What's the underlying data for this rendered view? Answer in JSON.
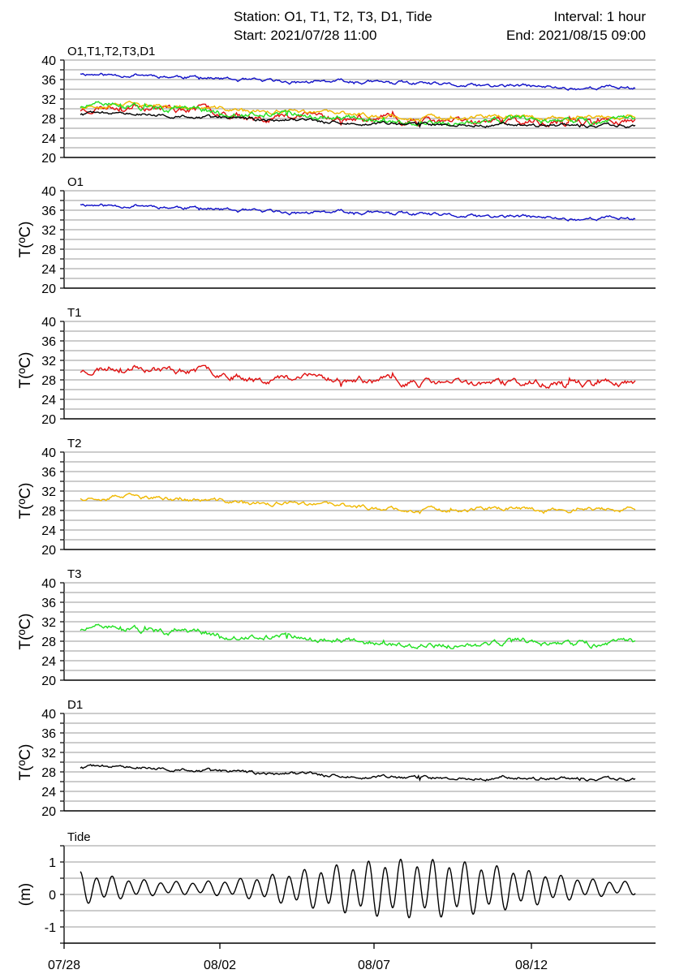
{
  "header": {
    "station": "Station: O1, T1, T2, T3, D1, Tide",
    "interval": "Interval: 1 hour",
    "start": "Start: 2021/07/28 11:00",
    "end": "End: 2021/08/15 09:00"
  },
  "colors": {
    "O1": "#1010c8",
    "T1": "#e01010",
    "T2": "#f0b800",
    "T3": "#20e020",
    "D1": "#000000",
    "Tide": "#000000",
    "grid": "#9a9a9a"
  },
  "chart_data": [
    {
      "type": "line",
      "title": "O1,T1,T2,T3,D1",
      "ylabel": "",
      "ylim": [
        20,
        40
      ],
      "yticks": [
        "20",
        "24",
        "28",
        "32",
        "36",
        "40"
      ],
      "x_start": "2021/07/28 11:00",
      "x_end": "2021/08/15 09:00",
      "series": [
        {
          "name": "O1",
          "x": [
            0,
            1,
            2,
            3,
            4,
            5,
            6,
            7,
            8,
            9,
            10,
            11,
            12,
            13,
            14,
            15,
            16,
            17,
            18,
            19
          ],
          "y": [
            37.3,
            36.9,
            37.1,
            36.7,
            36.5,
            36.0,
            35.6,
            35.5,
            35.5,
            35.6,
            35.4,
            35.3,
            35.0,
            34.7,
            34.6,
            34.7,
            34.4,
            34.2,
            34.5,
            34.3
          ]
        },
        {
          "name": "T1",
          "x": [
            0,
            1,
            2,
            3,
            4,
            5,
            6,
            7,
            8,
            9,
            10,
            11,
            12,
            13,
            14,
            15,
            16,
            17,
            18,
            19
          ],
          "y": [
            29.8,
            30.6,
            31.0,
            30.1,
            29.9,
            29.5,
            28.3,
            28.4,
            28.6,
            28.1,
            27.9,
            27.6,
            27.3,
            27.2,
            27.4,
            27.3,
            27.1,
            27.3,
            27.5,
            27.4
          ]
        },
        {
          "name": "T2",
          "x": [
            0,
            1,
            2,
            3,
            4,
            5,
            6,
            7,
            8,
            9,
            10,
            11,
            12,
            13,
            14,
            15,
            16,
            17,
            18,
            19
          ],
          "y": [
            30.6,
            31.0,
            30.6,
            30.4,
            30.1,
            29.9,
            29.4,
            29.5,
            29.1,
            28.9,
            28.6,
            28.3,
            28.1,
            28.2,
            28.4,
            28.3,
            28.1,
            28.2,
            28.3,
            28.1
          ]
        },
        {
          "name": "T3",
          "x": [
            0,
            1,
            2,
            3,
            4,
            5,
            6,
            7,
            8,
            9,
            10,
            11,
            12,
            13,
            14,
            15,
            16,
            17,
            18,
            19
          ],
          "y": [
            30.4,
            30.9,
            30.2,
            30.0,
            29.8,
            29.2,
            28.7,
            29.1,
            28.7,
            28.1,
            27.8,
            27.3,
            27.1,
            27.3,
            27.4,
            27.9,
            27.3,
            27.4,
            27.2,
            27.5
          ]
        },
        {
          "name": "D1",
          "x": [
            0,
            1,
            2,
            3,
            4,
            5,
            6,
            7,
            8,
            9,
            10,
            11,
            12,
            13,
            14,
            15,
            16,
            17,
            18,
            19
          ],
          "y": [
            28.9,
            29.0,
            28.9,
            28.7,
            28.4,
            28.1,
            27.8,
            27.7,
            27.5,
            27.1,
            26.9,
            26.8,
            26.7,
            26.7,
            26.8,
            26.9,
            26.5,
            26.5,
            26.4,
            26.5
          ]
        }
      ]
    },
    {
      "type": "line",
      "title": "O1",
      "ylabel": "T(ºC)",
      "ylim": [
        20,
        40
      ],
      "yticks": [
        "20",
        "24",
        "28",
        "32",
        "36",
        "40"
      ],
      "series": [
        {
          "name": "O1",
          "x": [
            0,
            1,
            2,
            3,
            4,
            5,
            6,
            7,
            8,
            9,
            10,
            11,
            12,
            13,
            14,
            15,
            16,
            17,
            18,
            19
          ],
          "y": [
            37.3,
            36.9,
            37.1,
            36.7,
            36.5,
            36.0,
            35.6,
            35.5,
            35.5,
            35.6,
            35.4,
            35.3,
            35.0,
            34.7,
            34.6,
            34.7,
            34.4,
            34.2,
            34.5,
            34.3
          ]
        }
      ]
    },
    {
      "type": "line",
      "title": "T1",
      "ylabel": "T(ºC)",
      "ylim": [
        20,
        40
      ],
      "yticks": [
        "20",
        "24",
        "28",
        "32",
        "36",
        "40"
      ],
      "series": [
        {
          "name": "T1",
          "x": [
            0,
            1,
            2,
            3,
            4,
            5,
            6,
            7,
            8,
            9,
            10,
            11,
            12,
            13,
            14,
            15,
            16,
            17,
            18,
            19
          ],
          "y": [
            29.8,
            30.6,
            31.0,
            30.1,
            29.9,
            29.5,
            28.3,
            28.4,
            28.6,
            28.1,
            27.9,
            27.6,
            27.3,
            27.2,
            27.4,
            27.3,
            27.1,
            27.3,
            27.5,
            27.4
          ]
        }
      ]
    },
    {
      "type": "line",
      "title": "T2",
      "ylabel": "T(ºC)",
      "ylim": [
        20,
        40
      ],
      "yticks": [
        "20",
        "24",
        "28",
        "32",
        "36",
        "40"
      ],
      "series": [
        {
          "name": "T2",
          "x": [
            0,
            1,
            2,
            3,
            4,
            5,
            6,
            7,
            8,
            9,
            10,
            11,
            12,
            13,
            14,
            15,
            16,
            17,
            18,
            19
          ],
          "y": [
            30.6,
            31.0,
            30.6,
            30.4,
            30.1,
            29.9,
            29.4,
            29.5,
            29.1,
            28.9,
            28.6,
            28.3,
            28.1,
            28.2,
            28.4,
            28.3,
            28.1,
            28.2,
            28.3,
            28.1
          ]
        }
      ]
    },
    {
      "type": "line",
      "title": "T3",
      "ylabel": "T(ºC)",
      "ylim": [
        20,
        40
      ],
      "yticks": [
        "20",
        "24",
        "28",
        "32",
        "36",
        "40"
      ],
      "series": [
        {
          "name": "T3",
          "x": [
            0,
            1,
            2,
            3,
            4,
            5,
            6,
            7,
            8,
            9,
            10,
            11,
            12,
            13,
            14,
            15,
            16,
            17,
            18,
            19
          ],
          "y": [
            30.4,
            30.9,
            30.2,
            30.0,
            29.8,
            29.2,
            28.7,
            29.1,
            28.7,
            28.1,
            27.8,
            27.3,
            27.1,
            27.3,
            27.4,
            27.9,
            27.3,
            27.4,
            27.2,
            27.5
          ]
        }
      ]
    },
    {
      "type": "line",
      "title": "D1",
      "ylabel": "T(ºC)",
      "ylim": [
        20,
        40
      ],
      "yticks": [
        "20",
        "24",
        "28",
        "32",
        "36",
        "40"
      ],
      "series": [
        {
          "name": "D1",
          "x": [
            0,
            1,
            2,
            3,
            4,
            5,
            6,
            7,
            8,
            9,
            10,
            11,
            12,
            13,
            14,
            15,
            16,
            17,
            18,
            19
          ],
          "y": [
            28.9,
            29.0,
            28.9,
            28.7,
            28.4,
            28.1,
            27.8,
            27.7,
            27.5,
            27.1,
            26.9,
            26.8,
            26.7,
            26.7,
            26.8,
            26.9,
            26.5,
            26.5,
            26.4,
            26.5
          ]
        }
      ]
    },
    {
      "type": "line",
      "title": "Tide",
      "ylabel": "(m)",
      "ylim": [
        -1.5,
        1.5
      ],
      "yticks": [
        "-1",
        "0",
        "1"
      ],
      "xticks": [
        "07/28",
        "08/02",
        "08/07",
        "08/12"
      ],
      "series": [
        {
          "name": "Tide",
          "mean": 0.2,
          "semidiurnal_period_h": 12.42,
          "approx_range_m": [
            -0.7,
            1.15
          ]
        }
      ]
    }
  ]
}
